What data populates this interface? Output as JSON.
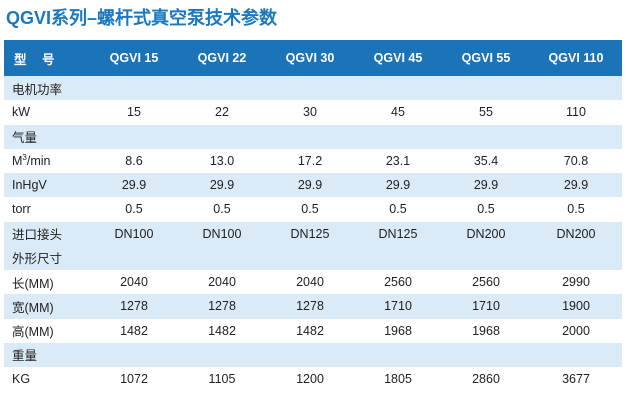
{
  "title": "QGVI系列–螺杆式真空泵技术参数",
  "header": {
    "label": "型 号",
    "models": [
      "QGVI 15",
      "QGVI 22",
      "QGVI 30",
      "QGVI 45",
      "QGVI 55",
      "QGVI 110"
    ]
  },
  "rows": [
    {
      "type": "section",
      "label": "电机功率"
    },
    {
      "type": "data",
      "label": "kW",
      "values": [
        "15",
        "22",
        "30",
        "45",
        "55",
        "110"
      ]
    },
    {
      "type": "section",
      "label": "气量"
    },
    {
      "type": "data",
      "label_main": "M",
      "label_sup": "3",
      "label_tail": "/min",
      "values": [
        "8.6",
        "13.0",
        "17.2",
        "23.1",
        "35.4",
        "70.8"
      ]
    },
    {
      "type": "data",
      "label": "InHgV",
      "values": [
        "29.9",
        "29.9",
        "29.9",
        "29.9",
        "29.9",
        "29.9"
      ]
    },
    {
      "type": "data",
      "label": "torr",
      "values": [
        "0.5",
        "0.5",
        "0.5",
        "0.5",
        "0.5",
        "0.5"
      ]
    },
    {
      "type": "data",
      "label": "进口接头",
      "values": [
        "DN100",
        "DN100",
        "DN125",
        "DN125",
        "DN200",
        "DN200"
      ]
    },
    {
      "type": "section",
      "label": "外形尺寸"
    },
    {
      "type": "data",
      "label": "长(MM)",
      "values": [
        "2040",
        "2040",
        "2040",
        "2560",
        "2560",
        "2990"
      ]
    },
    {
      "type": "data",
      "label": "宽(MM)",
      "values": [
        "1278",
        "1278",
        "1278",
        "1710",
        "1710",
        "1900"
      ]
    },
    {
      "type": "data",
      "label": "高(MM)",
      "values": [
        "1482",
        "1482",
        "1482",
        "1968",
        "1968",
        "2000"
      ]
    },
    {
      "type": "section",
      "label": "重量"
    },
    {
      "type": "data",
      "label": "KG",
      "values": [
        "1072",
        "1105",
        "1200",
        "1805",
        "2860",
        "3677"
      ]
    }
  ]
}
